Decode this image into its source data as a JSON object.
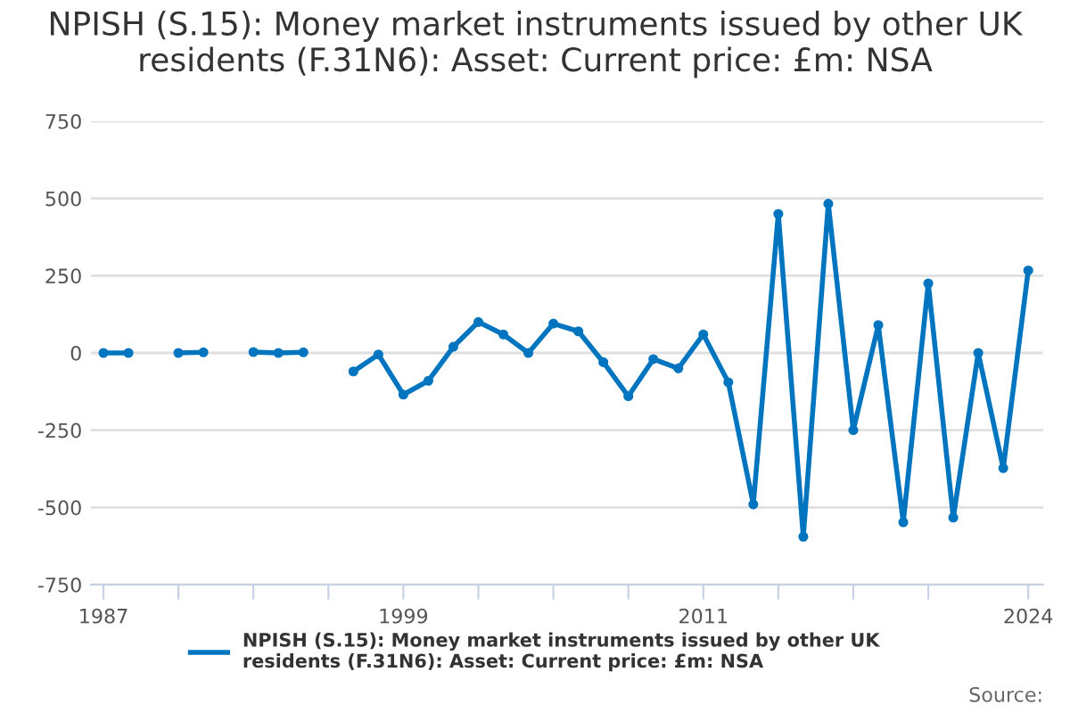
{
  "chart_data": {
    "type": "line",
    "title": "NPISH (S.15): Money market instruments issued by other UK residents (F.31N6): Asset: Current price: £m: NSA",
    "x": [
      1987,
      1988,
      1989,
      1990,
      1991,
      1992,
      1993,
      1994,
      1995,
      1996,
      1997,
      1998,
      1999,
      2000,
      2001,
      2002,
      2003,
      2004,
      2005,
      2006,
      2007,
      2008,
      2009,
      2010,
      2011,
      2012,
      2013,
      2014,
      2015,
      2016,
      2017,
      2018,
      2019,
      2020,
      2021,
      2022,
      2023,
      2024
    ],
    "series": [
      {
        "name": "NPISH (S.15): Money market instruments issued by other UK residents (F.31N6): Asset: Current price: £m: NSA",
        "color": "#0075bf",
        "values": [
          0,
          0,
          null,
          0,
          2,
          null,
          3,
          0,
          2,
          null,
          -60,
          -5,
          -135,
          -90,
          20,
          100,
          60,
          0,
          95,
          70,
          -30,
          -140,
          -20,
          -50,
          60,
          -95,
          -490,
          450,
          -595,
          483,
          -250,
          90,
          -548,
          225,
          -533,
          0,
          -373,
          267
        ]
      }
    ],
    "xlim": [
      1986.5,
      2024.6
    ],
    "xticks": [
      1987,
      {
        "value": 1990,
        "label": null
      },
      {
        "value": 1993,
        "label": null
      },
      {
        "value": 1996,
        "label": null
      },
      1999,
      {
        "value": 2002,
        "label": null
      },
      {
        "value": 2005,
        "label": null
      },
      {
        "value": 2008,
        "label": null
      },
      2011,
      {
        "value": 2014,
        "label": null
      },
      {
        "value": 2017,
        "label": null
      },
      {
        "value": 2020,
        "label": null
      },
      2024
    ],
    "ylim": [
      -750,
      750
    ],
    "yticks": [
      -750,
      -500,
      -250,
      0,
      250,
      500,
      750
    ],
    "grid": "y",
    "legend": "bottom",
    "marker": "circle",
    "line_style": "solid",
    "annotations": [
      "Source:"
    ]
  }
}
